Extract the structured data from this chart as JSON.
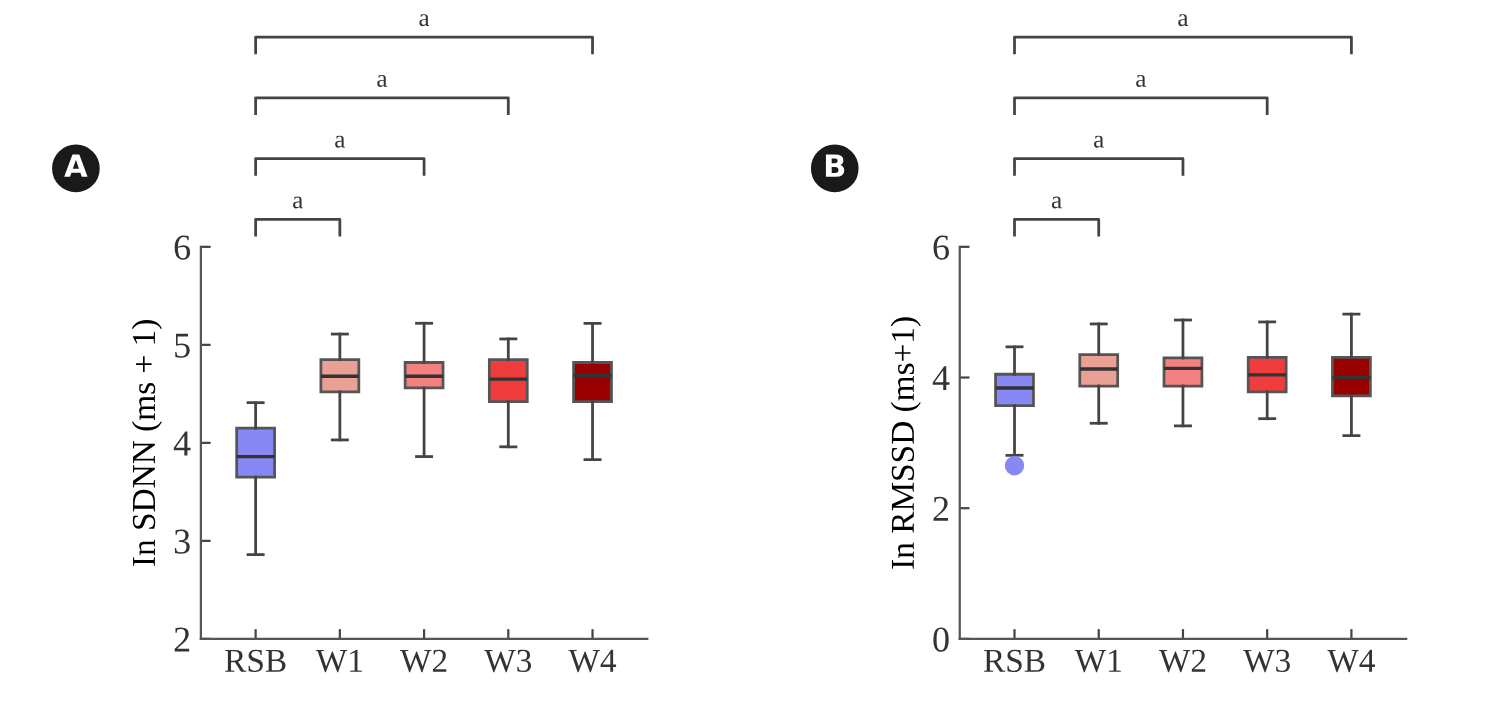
{
  "chart_data": [
    {
      "type": "box",
      "ylabel": "In SDNN (ms + 1)",
      "categories": [
        "RSB",
        "W1",
        "W2",
        "W3",
        "W4"
      ],
      "colors": [
        "#8888f5",
        "#eba096",
        "#f58080",
        "#f03c3c",
        "#990000"
      ],
      "ylim": [
        2,
        6
      ],
      "yticks": [
        2,
        3,
        4,
        5,
        6
      ],
      "grid": false,
      "annotations": [
        "A",
        "a",
        "a",
        "a",
        "a"
      ],
      "boxes": [
        {
          "low": 2.86,
          "q1": 3.65,
          "median": 3.86,
          "q3": 4.15,
          "high": 4.41
        },
        {
          "low": 4.03,
          "q1": 4.52,
          "median": 4.68,
          "q3": 4.85,
          "high": 5.11
        },
        {
          "low": 3.86,
          "q1": 4.56,
          "median": 4.68,
          "q3": 4.82,
          "high": 5.22
        },
        {
          "low": 3.96,
          "q1": 4.42,
          "median": 4.65,
          "q3": 4.85,
          "high": 5.06
        },
        {
          "low": 3.83,
          "q1": 4.42,
          "median": 4.69,
          "q3": 4.82,
          "high": 5.22
        }
      ]
    },
    {
      "type": "box",
      "ylabel": "In RMSSD (ms+1)",
      "categories": [
        "RSB",
        "W1",
        "W2",
        "W3",
        "W4"
      ],
      "colors": [
        "#8888f5",
        "#eba096",
        "#f58080",
        "#f03c3c",
        "#990000"
      ],
      "ylim": [
        0,
        6
      ],
      "yticks": [
        0,
        2,
        4,
        6
      ],
      "grid": false,
      "annotations": [
        "B",
        "a",
        "a",
        "a",
        "a"
      ],
      "boxes": [
        {
          "low": 2.81,
          "q1": 3.57,
          "median": 3.84,
          "q3": 4.05,
          "high": 4.47,
          "outliers": [
            2.65
          ]
        },
        {
          "low": 3.3,
          "q1": 3.87,
          "median": 4.13,
          "q3": 4.35,
          "high": 4.82
        },
        {
          "low": 3.26,
          "q1": 3.87,
          "median": 4.14,
          "q3": 4.3,
          "high": 4.88
        },
        {
          "low": 3.37,
          "q1": 3.78,
          "median": 4.04,
          "q3": 4.31,
          "high": 4.85
        },
        {
          "low": 3.11,
          "q1": 3.72,
          "median": 4.0,
          "q3": 4.31,
          "high": 4.97
        }
      ]
    }
  ]
}
